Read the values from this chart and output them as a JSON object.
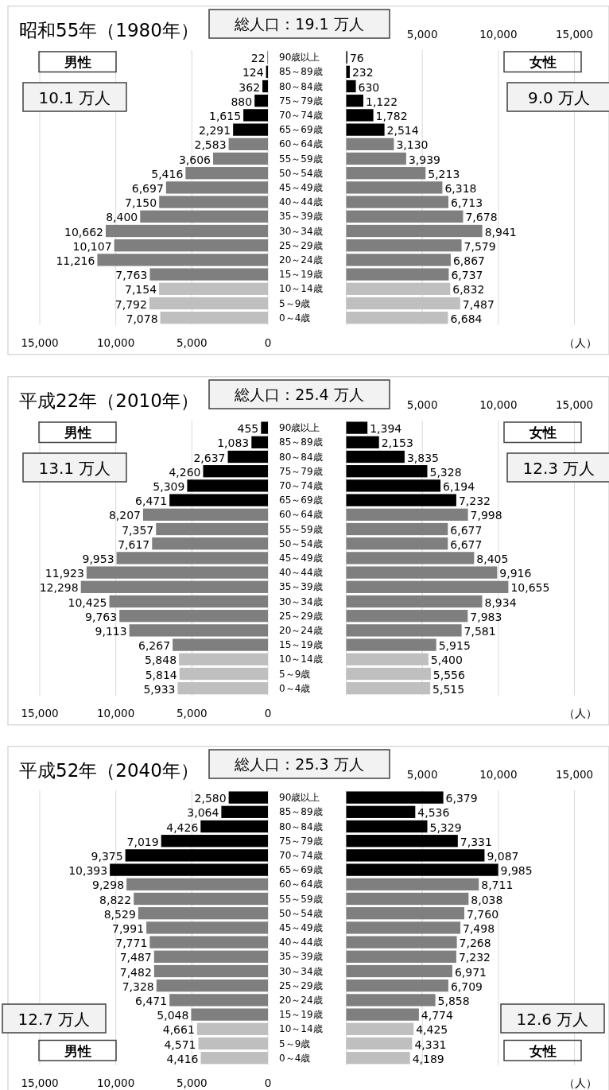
{
  "chart_data": [
    {
      "type": "bar",
      "orientation": "horizontal",
      "title": "昭和55年（1980年）",
      "subtitle": "総人口：19.1 万人",
      "categories": [
        "90歳以上",
        "85～89歳",
        "80～84歳",
        "75～79歳",
        "70～74歳",
        "65～69歳",
        "60～64歳",
        "55～59歳",
        "50～54歳",
        "45～49歳",
        "40～44歳",
        "35～39歳",
        "30～34歳",
        "25～29歳",
        "20～24歳",
        "15～19歳",
        "10～14歳",
        "5～9歳",
        "0～4歳"
      ],
      "series": [
        {
          "name": "男性",
          "colors": [
            "#000000",
            "#000000",
            "#000000",
            "#000000",
            "#000000",
            "#000000",
            "#7f7f7f",
            "#7f7f7f",
            "#7f7f7f",
            "#7f7f7f",
            "#7f7f7f",
            "#7f7f7f",
            "#7f7f7f",
            "#7f7f7f",
            "#7f7f7f",
            "#7f7f7f",
            "#bfbfbf",
            "#bfbfbf",
            "#bfbfbf"
          ],
          "values": [
            22,
            124,
            362,
            880,
            1615,
            2291,
            2583,
            3606,
            5416,
            6697,
            7150,
            8400,
            10662,
            10107,
            11216,
            7763,
            7154,
            7792,
            7078
          ],
          "value_labels": [
            "22",
            "124",
            "362",
            "880",
            "1,615",
            "2,291",
            "2,583",
            "3,606",
            "5,416",
            "6,697",
            "7,150",
            "8,400",
            "10,662",
            "10,107",
            "11,216",
            "7,763",
            "7,154",
            "7,792",
            "7,078"
          ]
        }
      ],
      "xlim": [
        15000,
        0
      ],
      "xticks": [
        {
          "value": 15000,
          "label": "15,000"
        },
        {
          "value": 10000,
          "label": "10,000"
        },
        {
          "value": 5000,
          "label": "5,000"
        },
        {
          "value": 0,
          "label": "0"
        }
      ],
      "grid": "x",
      "annotations": [
        "10.1 万人"
      ]
    },
    {
      "type": "bar",
      "orientation": "horizontal",
      "xlabel": "（人）",
      "categories": [
        null,
        null,
        null,
        null,
        null,
        null,
        null,
        null,
        null,
        null,
        null,
        null,
        null,
        null,
        null,
        null,
        null,
        null,
        null
      ],
      "series": [
        {
          "name": "女性",
          "colors": [
            "#000000",
            "#000000",
            "#000000",
            "#000000",
            "#000000",
            "#000000",
            "#7f7f7f",
            "#7f7f7f",
            "#7f7f7f",
            "#7f7f7f",
            "#7f7f7f",
            "#7f7f7f",
            "#7f7f7f",
            "#7f7f7f",
            "#7f7f7f",
            "#7f7f7f",
            "#bfbfbf",
            "#bfbfbf",
            "#bfbfbf"
          ],
          "values": [
            76,
            232,
            630,
            1122,
            1782,
            2514,
            3130,
            3939,
            5213,
            6318,
            6713,
            7678,
            8941,
            7579,
            6867,
            6737,
            6832,
            7487,
            6684
          ],
          "value_labels": [
            "76",
            "232",
            "630",
            "1,122",
            "1,782",
            "2,514",
            "3,130",
            "3,939",
            "5,213",
            "6,318",
            "6,713",
            "7,678",
            "8,941",
            "7,579",
            "6,867",
            "6,737",
            "6,832",
            "7,487",
            "6,684"
          ]
        }
      ],
      "xlim": [
        0,
        15000
      ],
      "xticks": [
        {
          "value": 0,
          "label": null
        },
        {
          "value": 5000,
          "label": "5,000"
        },
        {
          "value": 10000,
          "label": "10,000"
        },
        {
          "value": 15000,
          "label": "15,000"
        }
      ],
      "grid": "x",
      "tick_labels": "x",
      "annotations": [
        "9.0 万人"
      ]
    },
    {
      "type": "bar",
      "orientation": "horizontal",
      "title": "平成22年（2010年）",
      "subtitle": "総人口：25.4 万人",
      "categories": [
        "90歳以上",
        "85～89歳",
        "80～84歳",
        "75～79歳",
        "70～74歳",
        "65～69歳",
        "60～64歳",
        "55～59歳",
        "50～54歳",
        "45～49歳",
        "40～44歳",
        "35～39歳",
        "30～34歳",
        "25～29歳",
        "20～24歳",
        "15～19歳",
        "10～14歳",
        "5～9歳",
        "0～4歳"
      ],
      "series": [
        {
          "name": "男性",
          "colors": [
            "#000000",
            "#000000",
            "#000000",
            "#000000",
            "#000000",
            "#000000",
            "#7f7f7f",
            "#7f7f7f",
            "#7f7f7f",
            "#7f7f7f",
            "#7f7f7f",
            "#7f7f7f",
            "#7f7f7f",
            "#7f7f7f",
            "#7f7f7f",
            "#7f7f7f",
            "#bfbfbf",
            "#bfbfbf",
            "#bfbfbf"
          ],
          "values": [
            455,
            1083,
            2637,
            4260,
            5309,
            6471,
            8207,
            7357,
            7617,
            9953,
            11923,
            12298,
            10425,
            9763,
            9113,
            6267,
            5848,
            5814,
            5933
          ],
          "value_labels": [
            "455",
            "1,083",
            "2,637",
            "4,260",
            "5,309",
            "6,471",
            "8,207",
            "7,357",
            "7,617",
            "9,953",
            "11,923",
            "12,298",
            "10,425",
            "9,763",
            "9,113",
            "6,267",
            "5,848",
            "5,814",
            "5,933"
          ]
        }
      ],
      "xlim": [
        15000,
        0
      ],
      "xticks": [
        {
          "value": 15000,
          "label": "15,000"
        },
        {
          "value": 10000,
          "label": "10,000"
        },
        {
          "value": 5000,
          "label": "5,000"
        },
        {
          "value": 0,
          "label": "0"
        }
      ],
      "grid": "x",
      "annotations": [
        "13.1 万人"
      ]
    },
    {
      "type": "bar",
      "orientation": "horizontal",
      "xlabel": "（人）",
      "categories": [
        null,
        null,
        null,
        null,
        null,
        null,
        null,
        null,
        null,
        null,
        null,
        null,
        null,
        null,
        null,
        null,
        null,
        null,
        null
      ],
      "series": [
        {
          "name": "女性",
          "colors": [
            "#000000",
            "#000000",
            "#000000",
            "#000000",
            "#000000",
            "#000000",
            "#7f7f7f",
            "#7f7f7f",
            "#7f7f7f",
            "#7f7f7f",
            "#7f7f7f",
            "#7f7f7f",
            "#7f7f7f",
            "#7f7f7f",
            "#7f7f7f",
            "#7f7f7f",
            "#bfbfbf",
            "#bfbfbf",
            "#bfbfbf"
          ],
          "values": [
            1394,
            2153,
            3835,
            5328,
            6194,
            7232,
            7998,
            6677,
            6677,
            8405,
            9916,
            10655,
            8934,
            7983,
            7581,
            5915,
            5400,
            5556,
            5515
          ],
          "value_labels": [
            "1,394",
            "2,153",
            "3,835",
            "5,328",
            "6,194",
            "7,232",
            "7,998",
            "6,677",
            "6,677",
            "8,405",
            "9,916",
            "10,655",
            "8,934",
            "7,983",
            "7,581",
            "5,915",
            "5,400",
            "5,556",
            "5,515"
          ]
        }
      ],
      "xlim": [
        0,
        15000
      ],
      "xticks": [
        {
          "value": 0,
          "label": null
        },
        {
          "value": 5000,
          "label": "5,000"
        },
        {
          "value": 10000,
          "label": "10,000"
        },
        {
          "value": 15000,
          "label": "15,000"
        }
      ],
      "grid": "x",
      "tick_labels": "x",
      "annotations": [
        "12.3 万人"
      ]
    },
    {
      "type": "bar",
      "orientation": "horizontal",
      "title": "平成52年（2040年）",
      "subtitle": "総人口：25.3 万人",
      "categories": [
        "90歳以上",
        "85～89歳",
        "80～84歳",
        "75～79歳",
        "70～74歳",
        "65～69歳",
        "60～64歳",
        "55～59歳",
        "50～54歳",
        "45～49歳",
        "40～44歳",
        "35～39歳",
        "30～34歳",
        "25～29歳",
        "20～24歳",
        "15～19歳",
        "10～14歳",
        "5～9歳",
        "0～4歳"
      ],
      "series": [
        {
          "name": "男性",
          "colors": [
            "#000000",
            "#000000",
            "#000000",
            "#000000",
            "#000000",
            "#000000",
            "#7f7f7f",
            "#7f7f7f",
            "#7f7f7f",
            "#7f7f7f",
            "#7f7f7f",
            "#7f7f7f",
            "#7f7f7f",
            "#7f7f7f",
            "#7f7f7f",
            "#7f7f7f",
            "#bfbfbf",
            "#bfbfbf",
            "#bfbfbf"
          ],
          "values": [
            2580,
            3064,
            4426,
            7019,
            9375,
            10393,
            9298,
            8822,
            8529,
            7991,
            7771,
            7487,
            7482,
            7328,
            6471,
            5048,
            4661,
            4571,
            4416
          ],
          "value_labels": [
            "2,580",
            "3,064",
            "4,426",
            "7,019",
            "9,375",
            "10,393",
            "9,298",
            "8,822",
            "8,529",
            "7,991",
            "7,771",
            "7,487",
            "7,482",
            "7,328",
            "6,471",
            "5,048",
            "4,661",
            "4,571",
            "4,416"
          ]
        }
      ],
      "xlim": [
        15000,
        0
      ],
      "xticks": [
        {
          "value": 15000,
          "label": "15,000"
        },
        {
          "value": 10000,
          "label": "10,000"
        },
        {
          "value": 5000,
          "label": "5,000"
        },
        {
          "value": 0,
          "label": "0"
        }
      ],
      "grid": "x",
      "annotations": [
        "12.7 万人"
      ]
    },
    {
      "type": "bar",
      "orientation": "horizontal",
      "xlabel": "（人）",
      "categories": [
        null,
        null,
        null,
        null,
        null,
        null,
        null,
        null,
        null,
        null,
        null,
        null,
        null,
        null,
        null,
        null,
        null,
        null,
        null
      ],
      "series": [
        {
          "name": "女性",
          "colors": [
            "#000000",
            "#000000",
            "#000000",
            "#000000",
            "#000000",
            "#000000",
            "#7f7f7f",
            "#7f7f7f",
            "#7f7f7f",
            "#7f7f7f",
            "#7f7f7f",
            "#7f7f7f",
            "#7f7f7f",
            "#7f7f7f",
            "#7f7f7f",
            "#7f7f7f",
            "#bfbfbf",
            "#bfbfbf",
            "#bfbfbf"
          ],
          "values": [
            6379,
            4536,
            5329,
            7331,
            9087,
            9985,
            8711,
            8038,
            7760,
            7498,
            7268,
            7232,
            6971,
            6709,
            5858,
            4774,
            4425,
            4331,
            4189
          ],
          "value_labels": [
            "6,379",
            "4,536",
            "5,329",
            "7,331",
            "9,087",
            "9,985",
            "8,711",
            "8,038",
            "7,760",
            "7,498",
            "7,268",
            "7,232",
            "6,971",
            "6,709",
            "5,858",
            "4,774",
            "4,425",
            "4,331",
            "4,189"
          ]
        }
      ],
      "xlim": [
        0,
        15000
      ],
      "xticks": [
        {
          "value": 0,
          "label": null
        },
        {
          "value": 5000,
          "label": "5,000"
        },
        {
          "value": 10000,
          "label": "10,000"
        },
        {
          "value": 15000,
          "label": "15,000"
        }
      ],
      "grid": "x",
      "tick_labels": "x",
      "annotations": [
        "12.6 万人"
      ]
    }
  ]
}
